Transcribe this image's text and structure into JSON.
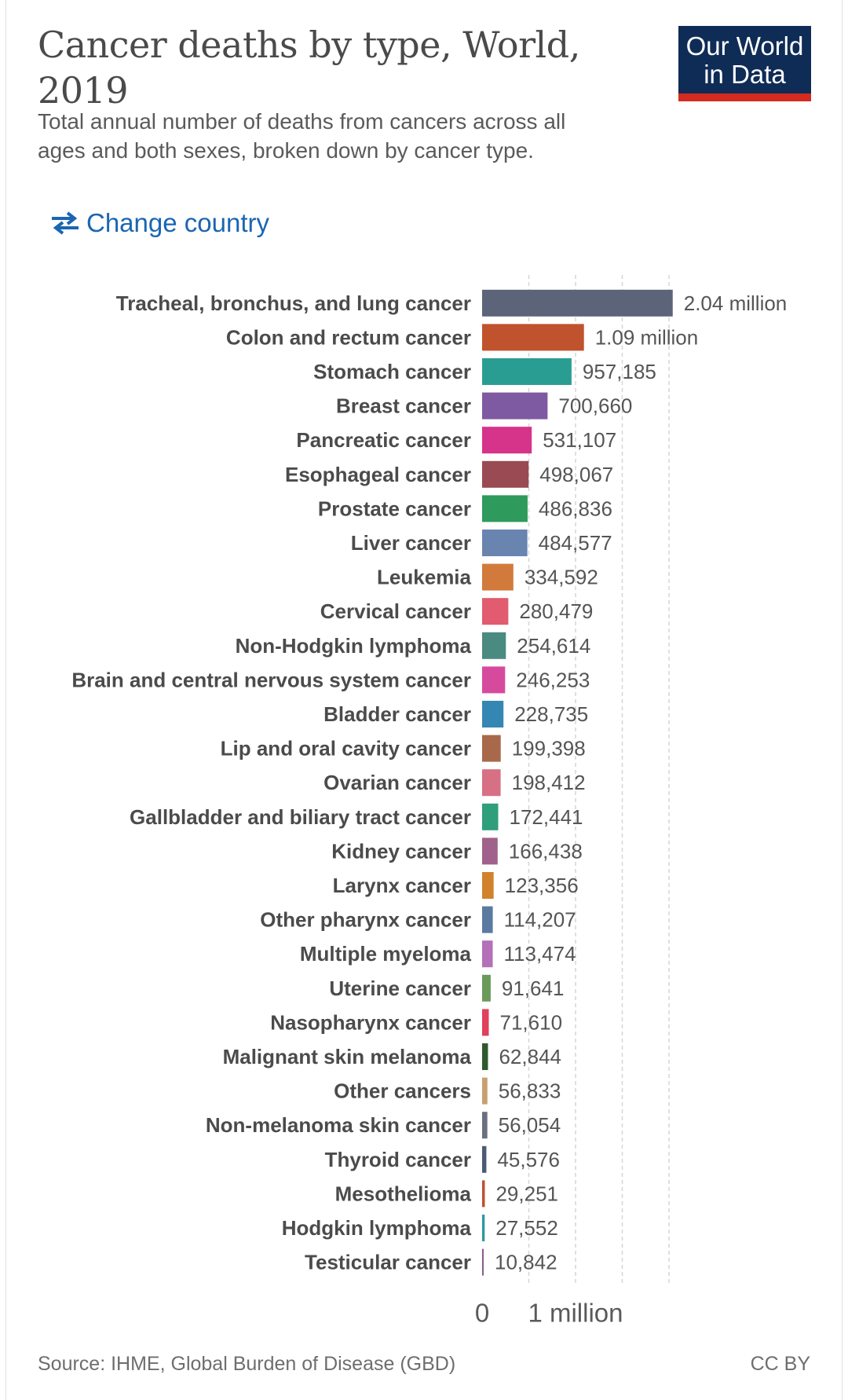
{
  "header": {
    "title": "Cancer deaths by type, World, 2019",
    "subtitle": "Total annual number of deaths from cancers across all ages and both sexes, broken down by cancer type.",
    "logo_line1": "Our World",
    "logo_line2": "in Data",
    "change_country_label": "Change country",
    "change_country_icon": "swap-arrows-icon"
  },
  "colors": {
    "logo_bg": "#0f2c56",
    "logo_accent": "#d42b21",
    "link": "#1a66b3"
  },
  "chart_data": {
    "type": "bar",
    "orientation": "horizontal",
    "title": "Cancer deaths by type, World, 2019",
    "xlim": [
      0,
      2000000
    ],
    "grid": "vertical dashed",
    "categories": [
      "Tracheal, bronchus, and lung cancer",
      "Colon and rectum cancer",
      "Stomach cancer",
      "Breast cancer",
      "Pancreatic cancer",
      "Esophageal cancer",
      "Prostate cancer",
      "Liver cancer",
      "Leukemia",
      "Cervical cancer",
      "Non-Hodgkin lymphoma",
      "Brain and central nervous system cancer",
      "Bladder cancer",
      "Lip and oral cavity cancer",
      "Ovarian cancer",
      "Gallbladder and biliary tract cancer",
      "Kidney cancer",
      "Larynx cancer",
      "Other pharynx cancer",
      "Multiple myeloma",
      "Uterine cancer",
      "Nasopharynx cancer",
      "Malignant skin melanoma",
      "Other cancers",
      "Non-melanoma skin cancer",
      "Thyroid cancer",
      "Mesothelioma",
      "Hodgkin lymphoma",
      "Testicular cancer"
    ],
    "values": [
      2040000,
      1090000,
      957185,
      700660,
      531107,
      498067,
      486836,
      484577,
      334592,
      280479,
      254614,
      246253,
      228735,
      199398,
      198412,
      172441,
      166438,
      123356,
      114207,
      113474,
      91641,
      71610,
      62844,
      56833,
      56054,
      45576,
      29251,
      27552,
      10842
    ],
    "value_labels": [
      "2.04 million",
      "1.09 million",
      "957,185",
      "700,660",
      "531,107",
      "498,067",
      "486,836",
      "484,577",
      "334,592",
      "280,479",
      "254,614",
      "246,253",
      "228,735",
      "199,398",
      "198,412",
      "172,441",
      "166,438",
      "123,356",
      "114,207",
      "113,474",
      "91,641",
      "71,610",
      "62,844",
      "56,833",
      "56,054",
      "45,576",
      "29,251",
      "27,552",
      "10,842"
    ],
    "colors": [
      "#5b6478",
      "#c0522d",
      "#2a9d93",
      "#7e5aa2",
      "#d6338a",
      "#9a4a52",
      "#2e9a5b",
      "#6a84b0",
      "#d27a3c",
      "#e05c6e",
      "#4a8a80",
      "#d64a9e",
      "#3587b3",
      "#a8694a",
      "#d77084",
      "#2f9e7a",
      "#a0628a",
      "#d2822c",
      "#5a7aa0",
      "#b470b8",
      "#6a9a5a",
      "#e0405a",
      "#2d5a2d",
      "#c8a070",
      "#6a7080",
      "#4a5a72",
      "#c05030",
      "#2a9aa0",
      "#8a5a8a"
    ],
    "x_ticks": [
      0,
      1000000
    ],
    "x_tick_labels": [
      "0",
      "1 million"
    ]
  },
  "footer": {
    "source": "Source: IHME, Global Burden of Disease (GBD)",
    "license": "CC BY"
  }
}
